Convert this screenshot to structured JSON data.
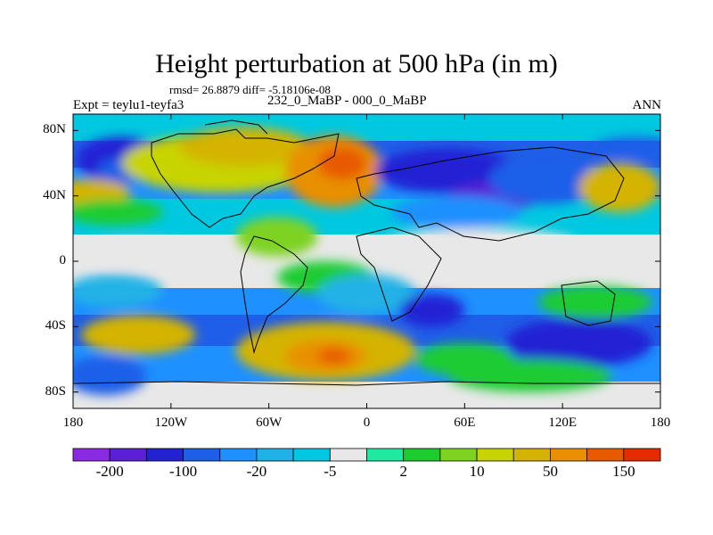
{
  "title": "Height perturbation at 500 hPa (in m)",
  "stats_text": "rmsd= 26.8879 diff= -5.18106e-08",
  "left_string": "Expt = teylu1-teyfa3",
  "center_string": "232_0_MaBP - 000_0_MaBP",
  "right_string": "ANN",
  "x_ticks": [
    {
      "label": "180",
      "lon": -180
    },
    {
      "label": "120W",
      "lon": -120
    },
    {
      "label": "60W",
      "lon": -60
    },
    {
      "label": "0",
      "lon": 0
    },
    {
      "label": "60E",
      "lon": 60
    },
    {
      "label": "120E",
      "lon": 120
    },
    {
      "label": "180",
      "lon": 180
    }
  ],
  "y_ticks": [
    {
      "label": "80N",
      "lat": 80
    },
    {
      "label": "40N",
      "lat": 40
    },
    {
      "label": "0",
      "lat": 0
    },
    {
      "label": "40S",
      "lat": -40
    },
    {
      "label": "80S",
      "lat": -80
    }
  ],
  "colorbar": {
    "colors": [
      "#8a2be2",
      "#5a1fd6",
      "#2222d4",
      "#1f5ee8",
      "#1e90ff",
      "#20b2e6",
      "#00c8e0",
      "#e8e8e8",
      "#1de9a0",
      "#1ecc30",
      "#7ed321",
      "#c8d400",
      "#d4b400",
      "#e89000",
      "#e85a00",
      "#e82a00"
    ],
    "labels": [
      {
        "text": "-200",
        "boundary": 1
      },
      {
        "text": "-100",
        "boundary": 3
      },
      {
        "text": "-20",
        "boundary": 5
      },
      {
        "text": "-5",
        "boundary": 7
      },
      {
        "text": "2",
        "boundary": 9
      },
      {
        "text": "10",
        "boundary": 11
      },
      {
        "text": "50",
        "boundary": 13
      },
      {
        "text": "150",
        "boundary": 15
      }
    ]
  },
  "map_blobs": [
    {
      "lon": -150,
      "lat": 62,
      "rx": 28,
      "ry": 14,
      "color": "#2222d4"
    },
    {
      "lon": -150,
      "lat": 55,
      "rx": 15,
      "ry": 8,
      "color": "#1f5ee8"
    },
    {
      "lon": -170,
      "lat": 42,
      "rx": 25,
      "ry": 8,
      "color": "#d4b400"
    },
    {
      "lon": -155,
      "lat": 30,
      "rx": 30,
      "ry": 8,
      "color": "#1ecc30"
    },
    {
      "lon": -140,
      "lat": 5,
      "rx": 40,
      "ry": 8,
      "color": "#e8e8e8"
    },
    {
      "lon": -155,
      "lat": -18,
      "rx": 30,
      "ry": 10,
      "color": "#20b2e6"
    },
    {
      "lon": -140,
      "lat": -45,
      "rx": 35,
      "ry": 12,
      "color": "#d4b400"
    },
    {
      "lon": -160,
      "lat": -70,
      "rx": 25,
      "ry": 12,
      "color": "#1f5ee8"
    },
    {
      "lon": -90,
      "lat": 60,
      "rx": 60,
      "ry": 18,
      "color": "#c8d400"
    },
    {
      "lon": -75,
      "lat": 70,
      "rx": 40,
      "ry": 12,
      "color": "#d4b400"
    },
    {
      "lon": -20,
      "lat": 55,
      "rx": 30,
      "ry": 22,
      "color": "#e89000"
    },
    {
      "lon": -15,
      "lat": 60,
      "rx": 15,
      "ry": 10,
      "color": "#e85a00"
    },
    {
      "lon": -55,
      "lat": 15,
      "rx": 25,
      "ry": 12,
      "color": "#7ed321"
    },
    {
      "lon": -25,
      "lat": -10,
      "rx": 30,
      "ry": 10,
      "color": "#1ecc30"
    },
    {
      "lon": 0,
      "lat": -20,
      "rx": 30,
      "ry": 12,
      "color": "#20b2e6"
    },
    {
      "lon": -25,
      "lat": -55,
      "rx": 55,
      "ry": 18,
      "color": "#d4b400"
    },
    {
      "lon": -25,
      "lat": -58,
      "rx": 25,
      "ry": 10,
      "color": "#e89000"
    },
    {
      "lon": -20,
      "lat": -58,
      "rx": 10,
      "ry": 5,
      "color": "#e85a00"
    },
    {
      "lon": 50,
      "lat": 55,
      "rx": 45,
      "ry": 14,
      "color": "#2222d4"
    },
    {
      "lon": 80,
      "lat": 40,
      "rx": 30,
      "ry": 8,
      "color": "#5a1fd6"
    },
    {
      "lon": 55,
      "lat": 30,
      "rx": 40,
      "ry": 10,
      "color": "#1e90ff"
    },
    {
      "lon": 110,
      "lat": 50,
      "rx": 35,
      "ry": 15,
      "color": "#1f5ee8"
    },
    {
      "lon": 155,
      "lat": 45,
      "rx": 25,
      "ry": 15,
      "color": "#d4b400"
    },
    {
      "lon": 165,
      "lat": 70,
      "rx": 25,
      "ry": 6,
      "color": "#1f5ee8"
    },
    {
      "lon": 70,
      "lat": 10,
      "rx": 60,
      "ry": 10,
      "color": "#e8e8e8"
    },
    {
      "lon": 40,
      "lat": -30,
      "rx": 20,
      "ry": 10,
      "color": "#2222d4"
    },
    {
      "lon": 140,
      "lat": -25,
      "rx": 35,
      "ry": 10,
      "color": "#1ecc30"
    },
    {
      "lon": 130,
      "lat": -50,
      "rx": 45,
      "ry": 15,
      "color": "#2222d4"
    },
    {
      "lon": 60,
      "lat": -60,
      "rx": 30,
      "ry": 10,
      "color": "#1ecc30"
    },
    {
      "lon": 100,
      "lat": -70,
      "rx": 50,
      "ry": 10,
      "color": "#1ecc30"
    }
  ]
}
